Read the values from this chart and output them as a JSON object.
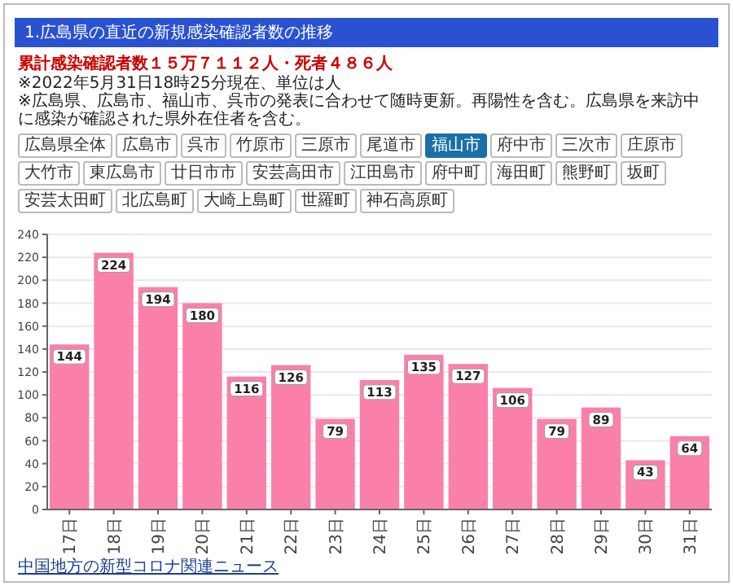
{
  "chart_data": {
    "type": "bar",
    "title": "1.広島県の直近の新規感染確認者数の推移",
    "subtitle": "累計感染確認者数１５万７１１２人・死者４８６人",
    "annotations": [
      "※2022年5月31日18時25分現在、単位は人",
      "※広島県、広島市、福山市、呉市の発表に合わせて随時更新。再陽性を含む。広島県を来訪中に感染が確認された県外在住者を含む。",
      "広島県全体",
      "広島市",
      "呉市",
      "竹原市",
      "三原市",
      "尾道市",
      "福山市",
      "府中市",
      "三次市",
      "庄原市",
      "大竹市",
      "東広島市",
      "廿日市市",
      "安芸高田市",
      "江田島市",
      "府中町",
      "海田町",
      "熊野町",
      "坂町",
      "安芸太田町",
      "北広島町",
      "大崎上島町",
      "世羅町",
      "神石高原町",
      "中国地方の新型コロナ関連ニュース"
    ],
    "categories": [
      "17日",
      "18日",
      "19日",
      "20日",
      "21日",
      "22日",
      "23日",
      "24日",
      "25日",
      "26日",
      "27日",
      "28日",
      "29日",
      "30日",
      "31日"
    ],
    "values": [
      144,
      224,
      194,
      180,
      116,
      126,
      79,
      113,
      135,
      127,
      106,
      79,
      89,
      43,
      64
    ],
    "color": "#fb80a9",
    "ylim": [
      0,
      240
    ],
    "yticks": [
      0,
      20,
      40,
      60,
      80,
      100,
      120,
      140,
      160,
      180,
      200,
      220,
      240
    ],
    "grid": "y",
    "data_labels": true
  }
}
